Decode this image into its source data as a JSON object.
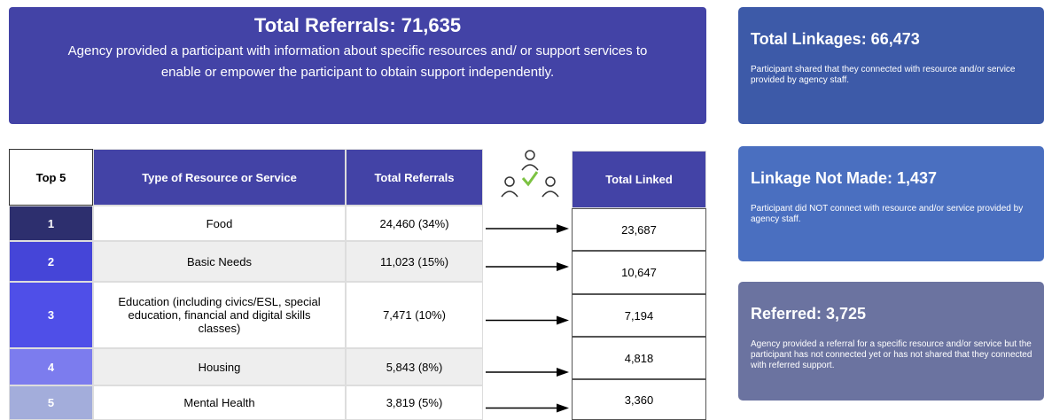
{
  "header": {
    "title": "Total Referrals: 71,635",
    "description": "Agency provided a participant with information about specific resources and/ or support services to enable or empower the participant to obtain support independently."
  },
  "table": {
    "headers": [
      "Top 5",
      "Type of Resource or Service",
      "Total Referrals"
    ],
    "rows": [
      [
        "1",
        "Food",
        "24,460 (34%)"
      ],
      [
        "2",
        "Basic Needs",
        "11,023 (15%)"
      ],
      [
        "3",
        "Education (including civics/ESL, special education, financial and digital skills classes)",
        "7,471 (10%)"
      ],
      [
        "4",
        "Housing",
        "5,843 (8%)"
      ],
      [
        "5",
        "Mental Health",
        "3,819 (5%)"
      ]
    ]
  },
  "linked": {
    "header": "Total Linked",
    "values": [
      "23,687",
      "10,647",
      "7,194",
      "4,818",
      "3,360"
    ]
  },
  "cards": [
    {
      "title": "Total Linkages: 66,473",
      "text": "Participant shared that they connected with resource and/or service provided by agency staff."
    },
    {
      "title": "Linkage Not Made: 1,437",
      "text": "Participant did NOT connect with resource and/or service provided by agency staff."
    },
    {
      "title": "Referred: 3,725",
      "text": "Agency provided a referral for a specific resource and/or service but the participant has not connected yet or has not shared that they connected with referred support."
    }
  ]
}
